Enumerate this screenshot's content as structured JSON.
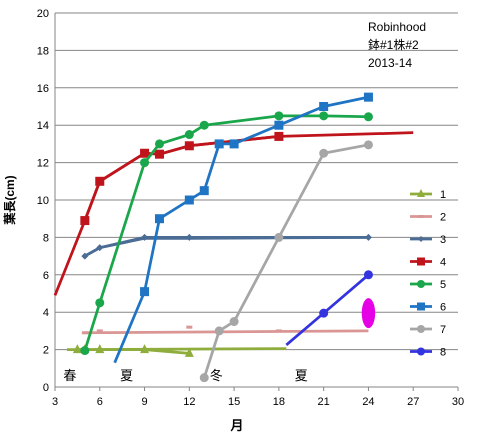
{
  "chart_data": {
    "type": "line",
    "title": "Robinhood",
    "subtitle": "鉢#1株#2",
    "subtitle2": "2013-14",
    "xlabel": "月",
    "ylabel": "葉長(cm)",
    "xlim": [
      3,
      30
    ],
    "ylim": [
      0,
      20
    ],
    "xticks": [
      3,
      6,
      9,
      12,
      15,
      18,
      21,
      24,
      27,
      30
    ],
    "yticks": [
      0,
      2,
      4,
      6,
      8,
      10,
      12,
      14,
      16,
      18,
      20
    ],
    "grid": "horizontal",
    "legend_position": "right",
    "season_labels": [
      {
        "text": "春",
        "x": 4
      },
      {
        "text": "夏",
        "x": 7.8
      },
      {
        "text": "冬",
        "x": 13.8
      },
      {
        "text": "夏",
        "x": 19.5
      }
    ],
    "series": [
      {
        "name": "1",
        "color": "#8fad3c",
        "marker": "triangle",
        "points": [
          [
            4.5,
            2.0
          ],
          [
            5,
            2.0
          ],
          [
            6,
            2.0
          ],
          [
            9,
            2.0
          ],
          [
            12,
            1.8
          ]
        ],
        "trend": [
          [
            3.8,
            2.0
          ],
          [
            18.5,
            2.05
          ]
        ]
      },
      {
        "name": "2",
        "color": "#d99694",
        "marker": "dash",
        "points": [
          [
            5,
            2.9
          ],
          [
            6,
            3.0
          ],
          [
            12,
            3.2
          ],
          [
            18,
            3.0
          ]
        ],
        "trend": [
          [
            5,
            2.9
          ],
          [
            24,
            3.0
          ]
        ]
      },
      {
        "name": "3",
        "color": "#4a6c95",
        "marker": "diamond",
        "points": [
          [
            5,
            7.0
          ],
          [
            6,
            7.45
          ],
          [
            9,
            8.0
          ],
          [
            12,
            8.0
          ],
          [
            24,
            8.0
          ]
        ],
        "trend": [
          [
            5,
            7.0
          ],
          [
            6,
            7.45
          ],
          [
            9,
            7.95
          ],
          [
            12,
            7.95
          ],
          [
            24,
            8.0
          ]
        ]
      },
      {
        "name": "4",
        "color": "#c0141c",
        "marker": "square",
        "points": [
          [
            5,
            8.9
          ],
          [
            6,
            11.0
          ],
          [
            9,
            12.5
          ],
          [
            10,
            12.45
          ],
          [
            12,
            12.9
          ],
          [
            18,
            13.4
          ]
        ],
        "trend": [
          [
            3,
            4.9
          ],
          [
            5,
            8.9
          ],
          [
            6,
            11.0
          ],
          [
            9,
            12.5
          ],
          [
            10,
            12.45
          ],
          [
            12,
            12.9
          ],
          [
            18,
            13.4
          ],
          [
            27,
            13.6
          ]
        ]
      },
      {
        "name": "5",
        "color": "#1aa64b",
        "marker": "circle",
        "points": [
          [
            5,
            1.95
          ],
          [
            6,
            4.5
          ],
          [
            9,
            12.0
          ],
          [
            10,
            13.0
          ],
          [
            12,
            13.5
          ],
          [
            13,
            14.0
          ],
          [
            18,
            14.5
          ],
          [
            21,
            14.5
          ],
          [
            24,
            14.45
          ]
        ],
        "trend": []
      },
      {
        "name": "6",
        "color": "#1f74c4",
        "marker": "square",
        "points": [
          [
            9,
            5.1
          ],
          [
            10,
            9.0
          ],
          [
            12,
            10.0
          ],
          [
            13,
            10.5
          ],
          [
            14,
            13.0
          ],
          [
            15,
            13.0
          ],
          [
            18,
            14.0
          ],
          [
            21,
            15.0
          ],
          [
            24,
            15.5
          ]
        ],
        "trend": [
          [
            7,
            1.3
          ],
          [
            9,
            5.1
          ]
        ]
      },
      {
        "name": "7",
        "color": "#a6a6a6",
        "marker": "circle",
        "points": [
          [
            13,
            0.5
          ],
          [
            14,
            3.0
          ],
          [
            15,
            3.5
          ],
          [
            18,
            8.0
          ],
          [
            21,
            12.5
          ],
          [
            24,
            12.95
          ]
        ],
        "trend": []
      },
      {
        "name": "8",
        "color": "#3333e0",
        "marker": "circle",
        "points": [
          [
            21,
            3.95
          ],
          [
            24,
            6.0
          ]
        ],
        "trend": [
          [
            18.5,
            2.25
          ],
          [
            21,
            3.95
          ]
        ]
      }
    ],
    "annotations": [
      {
        "type": "ellipse",
        "color": "#e600e6",
        "cx": 24,
        "cy": 3.95,
        "rx": 0.45,
        "ry": 0.8
      }
    ]
  }
}
